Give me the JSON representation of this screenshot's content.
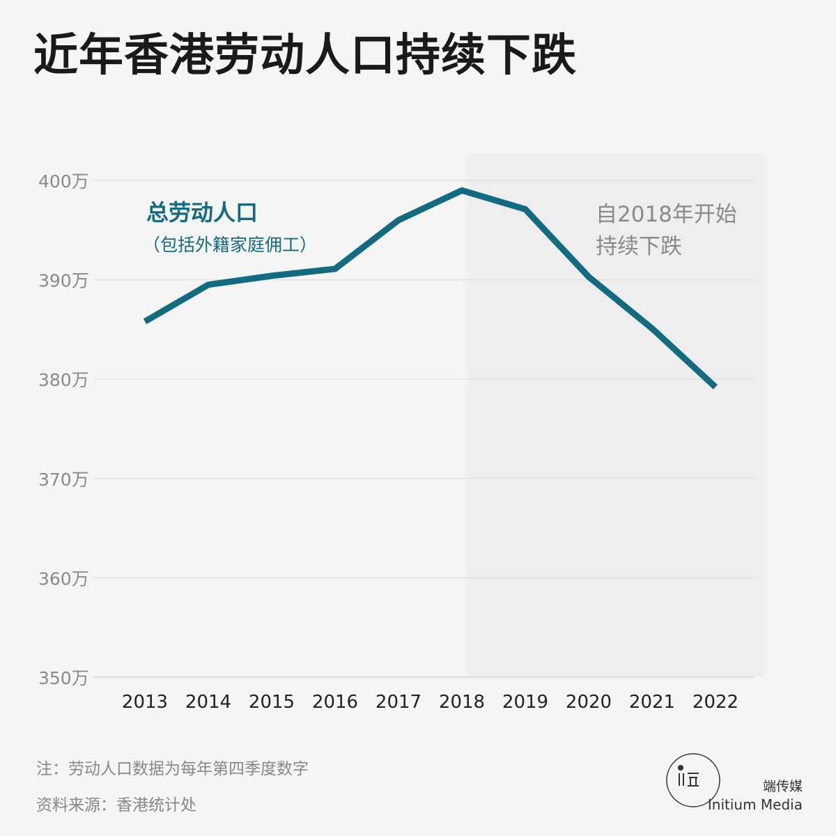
{
  "title": "近年香港劳动人口持续下跌",
  "chart_data": {
    "type": "line",
    "x": [
      "2013",
      "2014",
      "2015",
      "2016",
      "2017",
      "2018",
      "2019",
      "2020",
      "2021",
      "2022"
    ],
    "series": [
      {
        "name": "总劳动人口",
        "values": [
          385.8,
          389.5,
          390.4,
          391.1,
          396.0,
          399.0,
          397.1,
          390.3,
          385.1,
          379.2
        ],
        "color": "#126b80"
      }
    ],
    "series_label": "总劳动人口",
    "series_sublabel": "（包括外籍家庭佣工）",
    "yticks": [
      "400万",
      "390万",
      "380万",
      "370万",
      "360万",
      "350万"
    ],
    "ytick_values": [
      400,
      390,
      380,
      370,
      360,
      350
    ],
    "ylim": [
      350,
      400
    ],
    "grid": true,
    "highlight": {
      "from": "2018",
      "to": "2022",
      "line1": "自2018年开始",
      "line2": "持续下跌",
      "color": "#eeeeee"
    }
  },
  "notes": {
    "note": "注：劳动人口数据为每年第四季度数字",
    "source": "资料来源：香港统计处"
  },
  "brand": {
    "name_cn": "端传媒",
    "name_en": "Initium Media"
  }
}
